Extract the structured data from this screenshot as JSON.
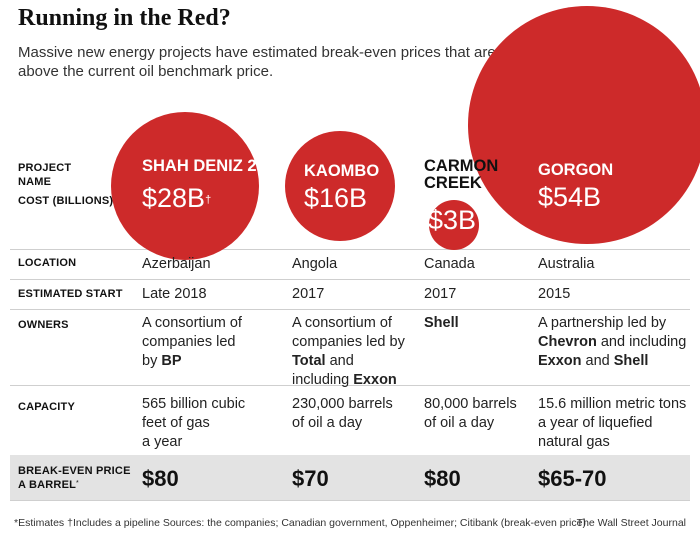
{
  "title": "Running in the Red?",
  "subtitle_lines": [
    "Massive new energy projects have estimated break-even prices that are",
    "above the current oil benchmark price."
  ],
  "row_labels": {
    "project_name": [
      "PROJECT",
      "NAME"
    ],
    "cost": "COST (BILLIONS)",
    "cost_marker": "*",
    "location": "LOCATION",
    "estimated_start": "ESTIMATED START",
    "owners": "OWNERS",
    "capacity": "CAPACITY",
    "break_even": [
      "BREAK-EVEN PRICE",
      "A BARREL"
    ],
    "break_even_marker": "*"
  },
  "projects": [
    {
      "name": [
        "SHAH DENIZ 2"
      ],
      "cost_label": "$28B",
      "cost_marker": "†",
      "location": "Azerbaijan",
      "estimated_start": "Late 2018",
      "owners": [
        [
          {
            "t": "A consortium of",
            "b": false
          }
        ],
        [
          {
            "t": "companies led",
            "b": false
          }
        ],
        [
          {
            "t": "by ",
            "b": false
          },
          {
            "t": "BP",
            "b": true
          }
        ]
      ],
      "capacity": [
        "565 billion cubic",
        "feet of gas",
        "a year"
      ],
      "break_even": "$80"
    },
    {
      "name": [
        "KAOMBO"
      ],
      "cost_label": "$16B",
      "cost_marker": "",
      "location": "Angola",
      "estimated_start": "2017",
      "owners": [
        [
          {
            "t": "A consortium of",
            "b": false
          }
        ],
        [
          {
            "t": "companies led by",
            "b": false
          }
        ],
        [
          {
            "t": "Total",
            "b": true
          },
          {
            "t": " and",
            "b": false
          }
        ],
        [
          {
            "t": "including ",
            "b": false
          },
          {
            "t": "Exxon",
            "b": true
          }
        ]
      ],
      "capacity": [
        "230,000 barrels",
        "of oil a day"
      ],
      "break_even": "$70"
    },
    {
      "name": [
        "CARMON",
        "CREEK"
      ],
      "cost_label": "$3B",
      "cost_marker": "",
      "location": "Canada",
      "estimated_start": "2017",
      "owners": [
        [
          {
            "t": "Shell",
            "b": true
          }
        ]
      ],
      "capacity": [
        "80,000 barrels",
        "of oil a day"
      ],
      "break_even": "$80"
    },
    {
      "name": [
        "GORGON"
      ],
      "cost_label": "$54B",
      "cost_marker": "",
      "location": "Australia",
      "estimated_start": "2015",
      "owners": [
        [
          {
            "t": "A partnership led by",
            "b": false
          }
        ],
        [
          {
            "t": "Chevron",
            "b": true
          },
          {
            "t": " and including",
            "b": false
          }
        ],
        [
          {
            "t": "Exxon",
            "b": true
          },
          {
            "t": " and ",
            "b": false
          },
          {
            "t": "Shell",
            "b": true
          }
        ]
      ],
      "capacity": [
        "15.6 million metric tons",
        "a year of liquefied",
        "natural gas"
      ],
      "break_even": "$65-70"
    }
  ],
  "chart_data": {
    "type": "bubble",
    "title": "Running in the Red?",
    "categories": [
      "SHAH DENIZ 2",
      "KAOMBO",
      "CARMON CREEK",
      "GORGON"
    ],
    "series": [
      {
        "name": "Cost (billions)",
        "unit": "$B",
        "values": [
          28,
          16,
          3,
          54
        ]
      },
      {
        "name": "Break-even price a barrel",
        "unit": "$",
        "values": [
          80,
          70,
          80,
          "65-70"
        ]
      }
    ],
    "bubble_color": "#cd2a2a"
  },
  "footnotes": {
    "left": "*Estimates   †Includes a pipeline   Sources: the companies; Canadian government, Oppenheimer; Citibank (break-even price)",
    "right": "The Wall Street Journal"
  }
}
